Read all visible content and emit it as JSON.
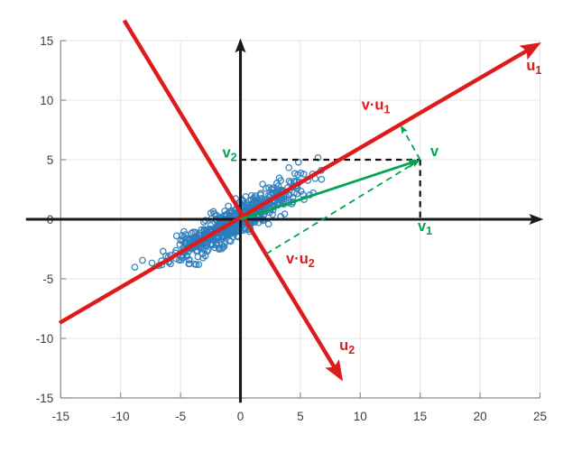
{
  "chart_data": {
    "type": "scatter",
    "title": "",
    "xlim": [
      -15,
      25
    ],
    "ylim": [
      -15,
      15
    ],
    "x_ticks": [
      "-15",
      "-10",
      "-5",
      "0",
      "5",
      "10",
      "15",
      "20",
      "25"
    ],
    "y_ticks": [
      "-15",
      "-10",
      "-5",
      "0",
      "5",
      "10",
      "15"
    ],
    "grid": true,
    "legend": null,
    "background": "#ffffff",
    "grid_color": "#e4e4e4",
    "spine_color": "#8c8c8c",
    "tick_label_color": "#404040",
    "axes_arrow_color": "#1a1a1a",
    "scatter": {
      "marker": "open-circle",
      "color": "#2b7dbd",
      "count": 580,
      "seed": 11,
      "center": [
        -0.6,
        -0.25
      ],
      "angle_deg": 30.3,
      "sigma_along": 3.05,
      "sigma_cross": 0.62,
      "clamp_sigma": 2.95
    },
    "axes_arrows": {
      "x": {
        "from": [
          -17.9,
          0
        ],
        "to": [
          25.3,
          0
        ]
      },
      "y": {
        "from": [
          0,
          -15.4
        ],
        "to": [
          0,
          15.2
        ]
      }
    },
    "vectors": {
      "u1": {
        "from": [
          -15.1,
          -8.7
        ],
        "to": [
          25.1,
          14.85
        ],
        "color": "#df1a1a"
      },
      "u2": {
        "from": [
          -9.7,
          16.7
        ],
        "to": [
          8.55,
          -13.6
        ],
        "color": "#df1a1a"
      },
      "v": {
        "from": [
          0,
          0
        ],
        "to": [
          15,
          5
        ],
        "color": "#00a651"
      }
    },
    "projection_dashes": {
      "color": "#00a651",
      "onto_u1": {
        "from": [
          15,
          5
        ],
        "to": [
          13.36,
          7.92
        ]
      },
      "onto_u2": {
        "from": [
          2.15,
          -2.91
        ],
        "to": [
          15,
          5
        ]
      }
    },
    "coordinate_dashes": {
      "color": "#111111",
      "h": {
        "from": [
          0,
          5
        ],
        "to": [
          15,
          5
        ]
      },
      "v": {
        "from": [
          15,
          5
        ],
        "to": [
          15,
          0
        ]
      }
    },
    "labels": {
      "u1": {
        "main": "u",
        "sub": "1",
        "x": 24.5,
        "y": 12.5,
        "color": "#df1a1a"
      },
      "u2": {
        "main": "u",
        "sub": "2",
        "x": 8.9,
        "y": -11.0,
        "color": "#df1a1a"
      },
      "vu1": {
        "main": "v·u",
        "sub": "1",
        "x": 11.3,
        "y": 9.2,
        "color": "#df1a1a"
      },
      "vu2": {
        "main": "v·u",
        "sub": "2",
        "x": 5.0,
        "y": -3.7,
        "color": "#df1a1a"
      },
      "v": {
        "main": "v",
        "sub": "",
        "x": 16.2,
        "y": 5.3,
        "color": "#00a651"
      },
      "v1": {
        "main": "v",
        "sub": "1",
        "x": 15.4,
        "y": -1.0,
        "color": "#00a651"
      },
      "v2": {
        "main": "v",
        "sub": "2",
        "x": -0.9,
        "y": 5.2,
        "color": "#00a651"
      }
    }
  }
}
